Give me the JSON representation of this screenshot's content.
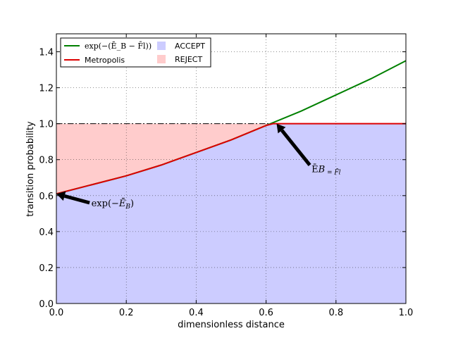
{
  "chart_data": {
    "type": "line",
    "title": "",
    "xlabel": "dimensionless distance",
    "ylabel": "transition probability",
    "xlim": [
      0.0,
      1.0
    ],
    "ylim": [
      0.0,
      1.5
    ],
    "xticks": [
      "0.0",
      "0.2",
      "0.4",
      "0.6",
      "0.8",
      "1.0"
    ],
    "yticks": [
      "0.0",
      "0.2",
      "0.4",
      "0.6",
      "0.8",
      "1.0",
      "1.2",
      "1.4"
    ],
    "grid": true,
    "legend_position": "top-left",
    "series": [
      {
        "name": "exp(−(Ē_B − F̄l))",
        "color": "#008000",
        "x": [
          0.0,
          0.1,
          0.2,
          0.3,
          0.4,
          0.5,
          0.6,
          0.7,
          0.8,
          0.9,
          1.0
        ],
        "y": [
          0.61,
          0.66,
          0.71,
          0.77,
          0.84,
          0.91,
          0.99,
          1.07,
          1.16,
          1.25,
          1.35
        ]
      },
      {
        "name": "Metropolis",
        "color": "#dd0000",
        "x": [
          0.0,
          0.1,
          0.2,
          0.3,
          0.4,
          0.5,
          0.6,
          0.62,
          0.7,
          0.8,
          0.9,
          1.0
        ],
        "y": [
          0.61,
          0.66,
          0.71,
          0.77,
          0.84,
          0.91,
          0.99,
          1.0,
          1.0,
          1.0,
          1.0,
          1.0
        ]
      }
    ],
    "regions": [
      {
        "name": "ACCEPT",
        "color": "#ccccff"
      },
      {
        "name": "REJECT",
        "color": "#ffcccc"
      }
    ],
    "reference_line": {
      "y": 1.0,
      "style": "dashdot"
    },
    "annotations": [
      {
        "text": "exp(−Ē_B)",
        "math": [
          "exp(−",
          "Ē",
          "B",
          ")"
        ],
        "point": [
          0.0,
          0.61
        ],
        "text_pos": [
          0.1,
          0.54
        ]
      },
      {
        "text": "Ē_B = F̄l",
        "math": [
          "Ē",
          "B",
          " = F̄l"
        ],
        "point": [
          0.63,
          1.0
        ],
        "text_pos": [
          0.73,
          0.73
        ]
      }
    ]
  }
}
